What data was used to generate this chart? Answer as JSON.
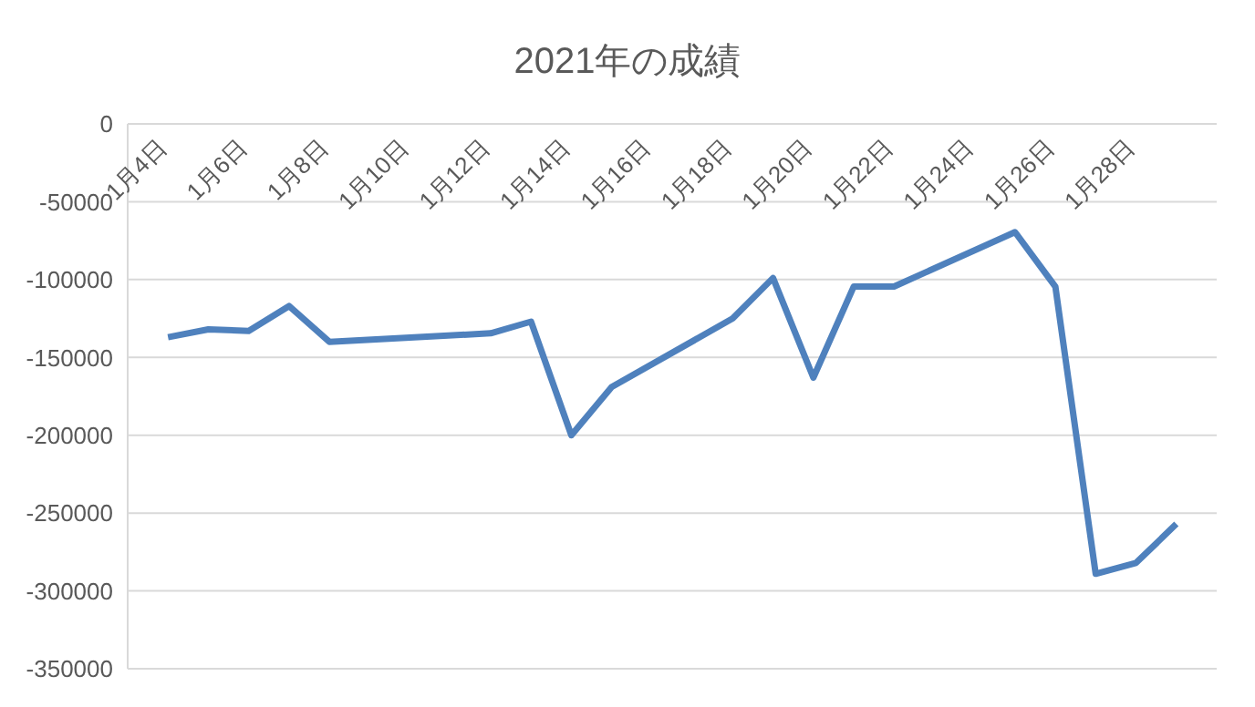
{
  "chart_data": {
    "type": "line",
    "title": "2021年の成績",
    "x": [
      "--01-04",
      "--01-05",
      "--01-06",
      "--01-07",
      "--01-08",
      "--01-12",
      "--01-13",
      "--01-14",
      "--01-15",
      "--01-18",
      "--01-19",
      "--01-20",
      "--01-21",
      "--01-22",
      "--01-25",
      "--01-26",
      "--01-27",
      "--01-28",
      "--01-29"
    ],
    "series": [
      {
        "color": "#4f81bd",
        "values": [
          -137000,
          -132000,
          -133000,
          -117000,
          -140000,
          -134500,
          -127000,
          -200000,
          -169000,
          -125000,
          -99000,
          -163000,
          -104500,
          -104500,
          -69500,
          -104500,
          -289000,
          -282000,
          -257000
        ]
      }
    ],
    "xlim": [
      "--01-03",
      "--01-30"
    ],
    "xticks": [
      {
        "value": "--01-04",
        "label": "1月4日"
      },
      {
        "value": "--01-06",
        "label": "1月6日"
      },
      {
        "value": "--01-08",
        "label": "1月8日"
      },
      {
        "value": "--01-10",
        "label": "1月10日"
      },
      {
        "value": "--01-12",
        "label": "1月12日"
      },
      {
        "value": "--01-14",
        "label": "1月14日"
      },
      {
        "value": "--01-16",
        "label": "1月16日"
      },
      {
        "value": "--01-18",
        "label": "1月18日"
      },
      {
        "value": "--01-20",
        "label": "1月20日"
      },
      {
        "value": "--01-22",
        "label": "1月22日"
      },
      {
        "value": "--01-24",
        "label": "1月24日"
      },
      {
        "value": "--01-26",
        "label": "1月26日"
      },
      {
        "value": "--01-28",
        "label": "1月28日"
      }
    ],
    "ylim": [
      -350000,
      0
    ],
    "yticks": [
      0,
      -50000,
      -100000,
      -150000,
      -200000,
      -250000,
      -300000,
      -350000
    ],
    "grid": "y",
    "legend": false,
    "marker": "none",
    "line_style": "solid"
  }
}
